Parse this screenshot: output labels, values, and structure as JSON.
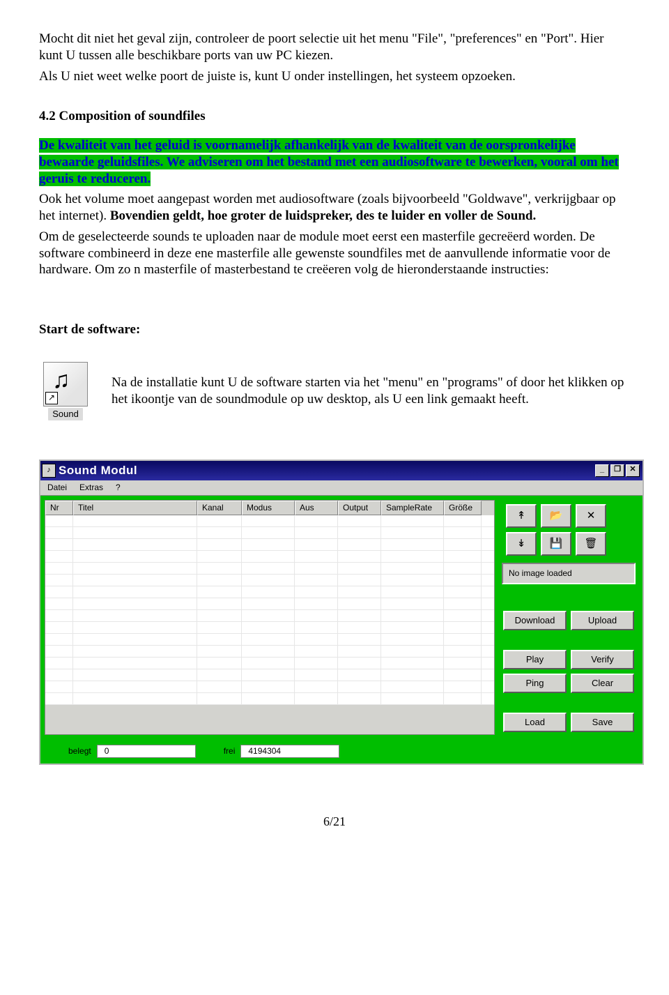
{
  "para1": "Mocht dit niet het geval zijn, controleer de poort selectie uit het menu \"File\", \"preferences\" en \"Port\". Hier kunt U tussen alle beschikbare ports van uw PC kiezen.",
  "para2": "Als U niet weet welke poort de juiste is, kunt U onder instellingen, het systeem opzoeken.",
  "section_title": "4.2 Composition of soundfiles",
  "hl1": "De kwaliteit van het geluid is voornamelijk afhankelijk van de kwaliteit van de oorspronkelijke bewaarde geluidsfiles. We adviseren om het bestand met een audiosoftware te bewerken, vooral om het geruis te reduceren.",
  "para3a": "Ook het volume moet aangepast worden met audiosoftware (zoals bijvoorbeeld \"Goldwave\", verkrijgbaar op het internet). ",
  "para3b": "Bovendien geldt, hoe groter de luidspreker, des te luider en voller de Sound.",
  "para4": "Om de geselecteerde sounds te uploaden naar de module moet eerst een masterfile gecreëerd worden. De software combineerd in deze ene masterfile alle gewenste soundfiles met de aanvullende informatie voor de hardware. Om zo n masterfile of masterbestand te creëeren volg de hieronderstaande instructies:",
  "start_title": "Start de software:",
  "icon_label": "Sound",
  "start_desc": "Na de installatie kunt U de software starten via het \"menu\" en \"programs\" of door het klikken op het ikoontje van de soundmodule op uw desktop, als U een link gemaakt heeft.",
  "window": {
    "title": "Sound Modul",
    "menu": {
      "file": "Datei",
      "extras": "Extras",
      "help": "?"
    },
    "win_btn": {
      "min": "_",
      "max": "❐",
      "close": "✕"
    },
    "columns": {
      "nr": "Nr",
      "titel": "Titel",
      "kanal": "Kanal",
      "modus": "Modus",
      "aus": "Aus",
      "output": "Output",
      "sr": "SampleRate",
      "gr": "Größe"
    },
    "status": "No image loaded",
    "icon_glyphs": {
      "up": "↟",
      "open": "📂",
      "x": "✕",
      "down": "↡",
      "save": "💾",
      "trash": "🗑"
    },
    "btns": {
      "download": "Download",
      "upload": "Upload",
      "play": "Play",
      "verify": "Verify",
      "ping": "Ping",
      "clear": "Clear",
      "load": "Load",
      "save": "Save"
    },
    "footer": {
      "belegt_lbl": "belegt",
      "belegt_val": "0",
      "frei_lbl": "frei",
      "frei_val": "4194304"
    }
  },
  "page_num": "6/21"
}
